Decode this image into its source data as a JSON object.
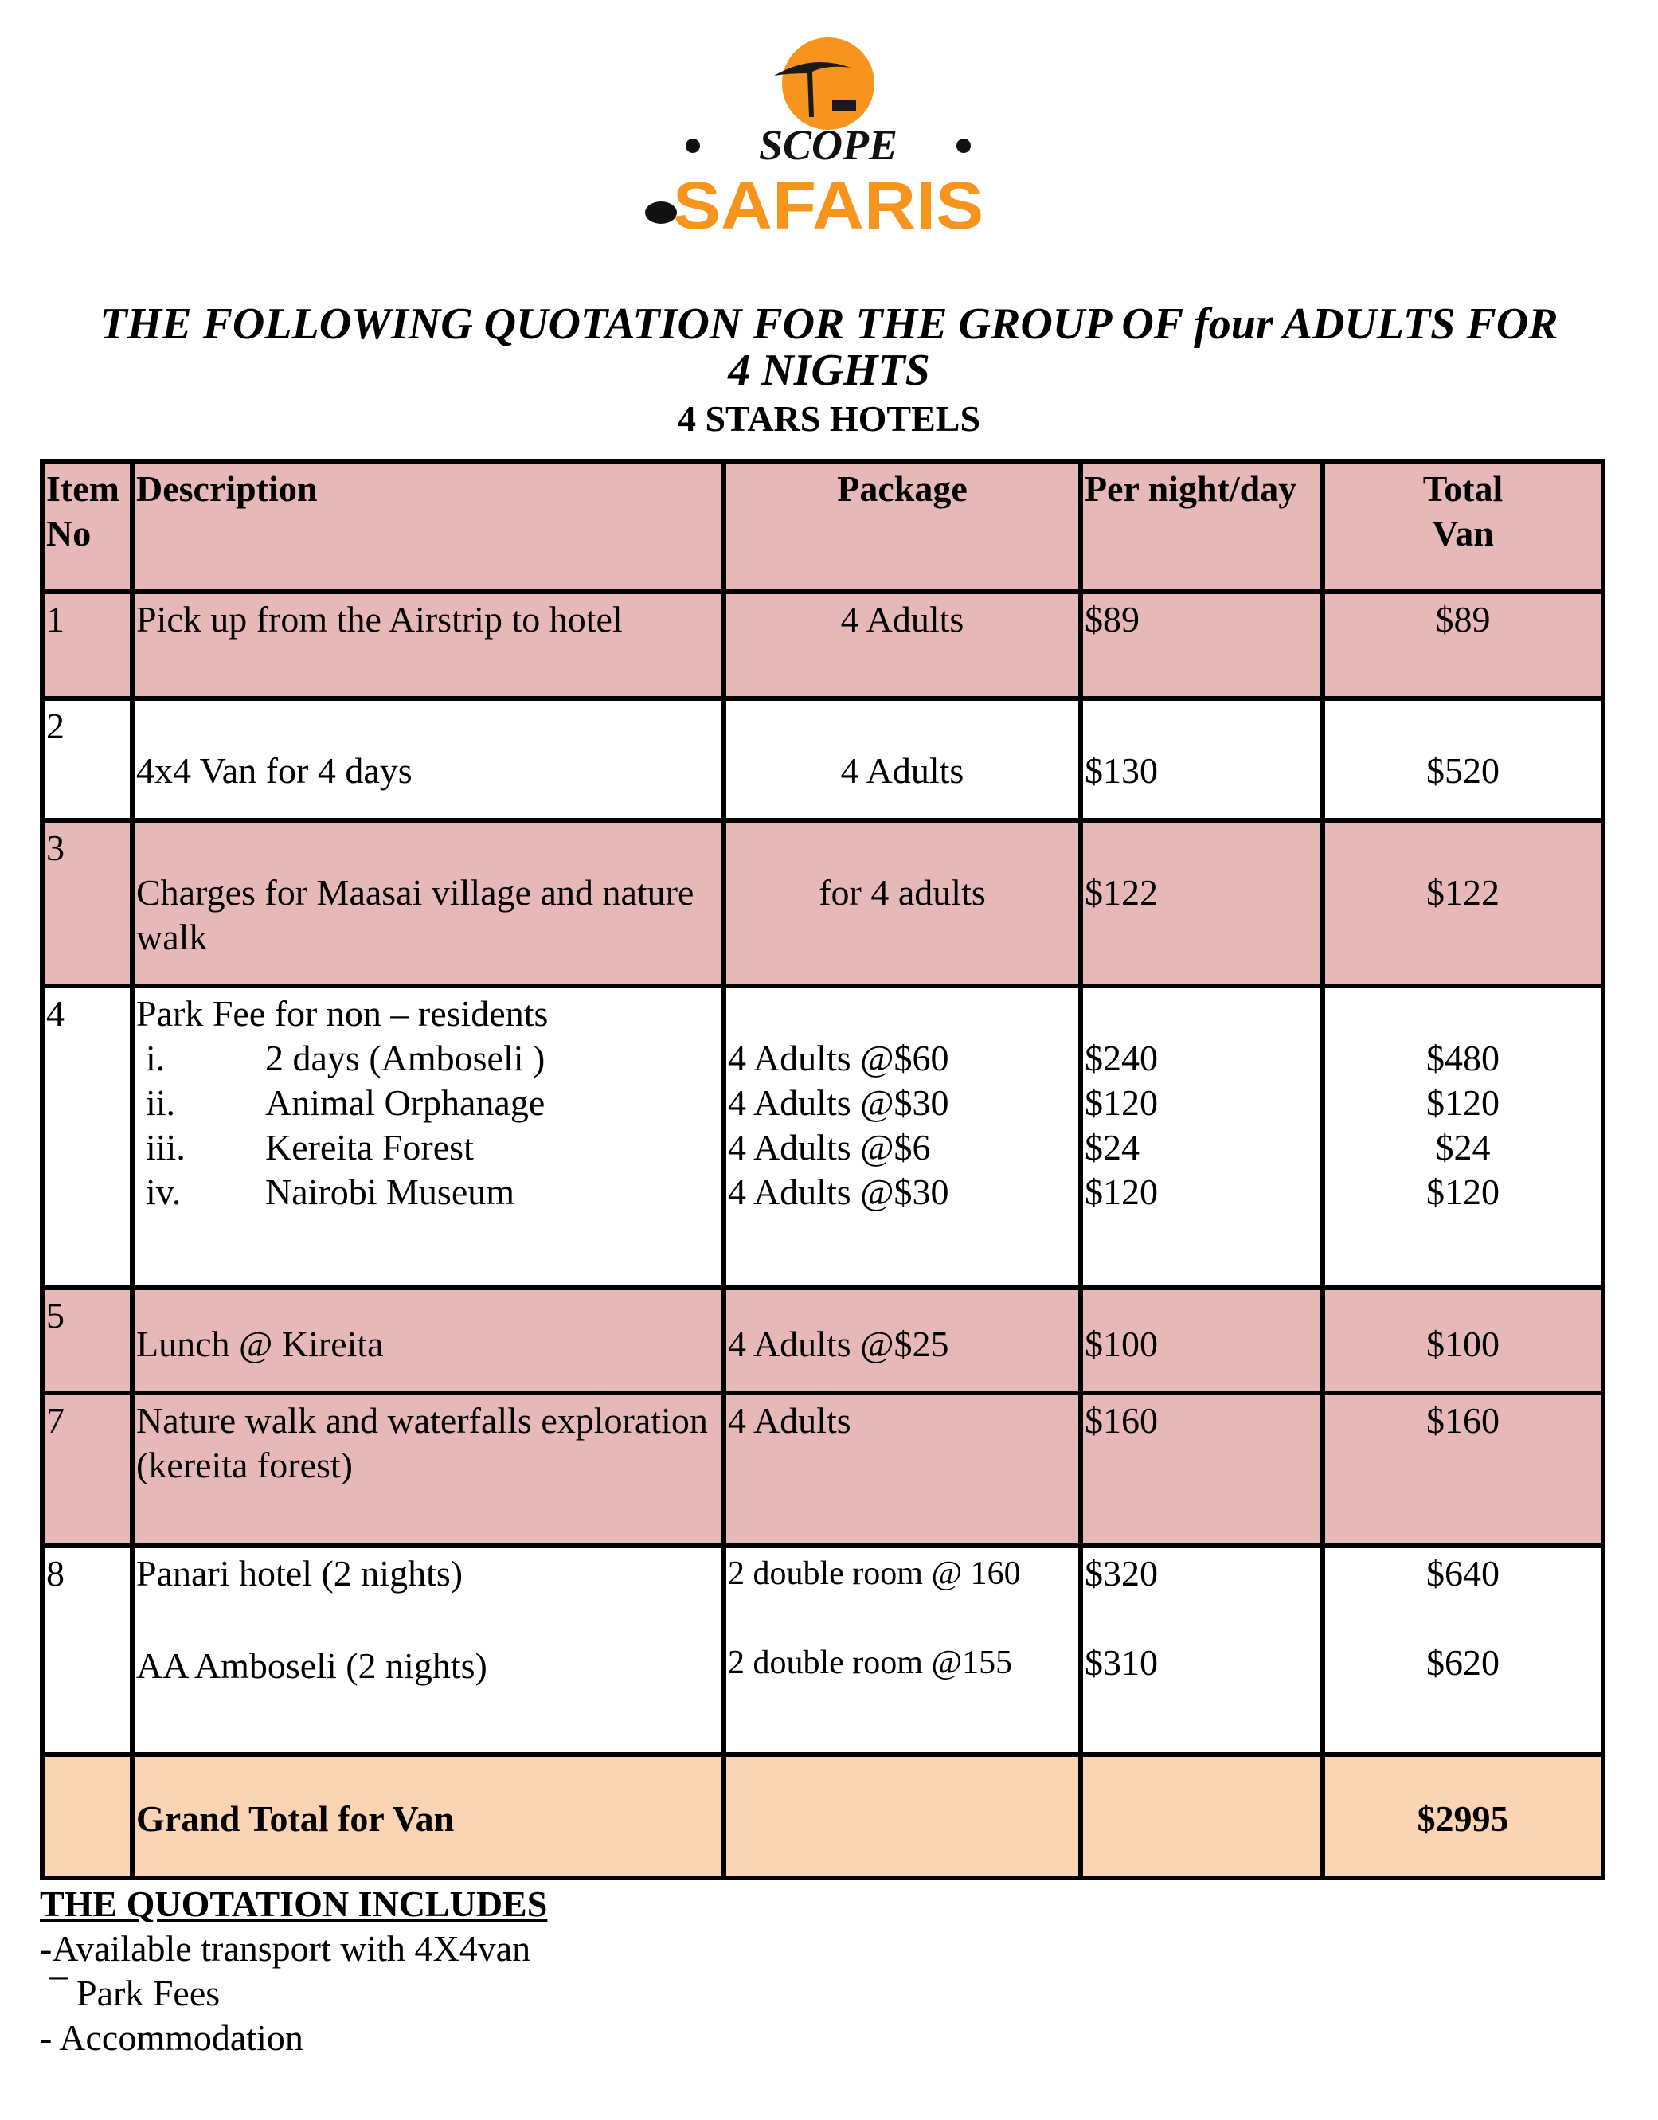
{
  "logo": {
    "line1": "SCOPE",
    "line2": "SAFARIS",
    "colors": {
      "orange": "#f7941d",
      "black": "#111111"
    }
  },
  "title": {
    "line1": "THE FOLLOWING QUOTATION FOR THE GROUP OF four ADULTS FOR",
    "line2": "4 NIGHTS",
    "subtitle": "4 STARS HOTELS"
  },
  "colors": {
    "row_pink": "#e6b8b7",
    "grand_total": "#fbd4b4"
  },
  "table": {
    "headers": {
      "item_no": "Item No",
      "description": "Description",
      "package": "Package",
      "per_night": "Per night/day",
      "total_line1": "Total",
      "total_line2": "Van"
    },
    "rows": [
      {
        "no": "1",
        "desc": "Pick up from the Airstrip to hotel",
        "package": "4 Adults",
        "per": "$89",
        "total": "$89"
      },
      {
        "no": "2",
        "desc": "4x4 Van for 4 days",
        "package": "4 Adults",
        "per": "$130",
        "total": "$520"
      },
      {
        "no": "3",
        "desc": "Charges for Maasai village and nature walk",
        "package": "for 4 adults",
        "per": "$122",
        "total": "$122"
      },
      {
        "no": "4",
        "desc": "Park Fee for non – residents",
        "sub": [
          {
            "num": "i.",
            "desc": "2 days (Amboseli )",
            "package": "4 Adults @$60",
            "per": "$240",
            "total": "$480"
          },
          {
            "num": "ii.",
            "desc": "Animal Orphanage",
            "package": "4 Adults @$30",
            "per": "$120",
            "total": "$120"
          },
          {
            "num": "iii.",
            "desc": "Kereita Forest",
            "package": "4 Adults @$6",
            "per": "$24",
            "total": "$24"
          },
          {
            "num": "iv.",
            "desc": "Nairobi Museum",
            "package": "4 Adults @$30",
            "per": "$120",
            "total": "$120"
          }
        ]
      },
      {
        "no": "5",
        "desc": "Lunch @ Kireita",
        "package": "4 Adults @$25",
        "per": "$100",
        "total": "$100"
      },
      {
        "no": "7",
        "desc": "Nature walk and waterfalls exploration (kereita forest)",
        "package": "4 Adults",
        "per": "$160",
        "total": "$160"
      },
      {
        "no": "8",
        "lines": [
          {
            "desc": "Panari hotel (2 nights)",
            "package": "2 double room @ 160",
            "per": "$320",
            "total": "$640"
          },
          {
            "desc": "AA Amboseli (2 nights)",
            "package": "2 double room @155",
            "per": "$310",
            "total": "$620"
          }
        ]
      }
    ],
    "grand_total": {
      "label": "Grand Total for Van",
      "value": "$2995"
    }
  },
  "includes": {
    "heading": "THE QUOTATION INCLUDES",
    "items": [
      "-Available transport with 4X4van",
      " ¯ Park Fees",
      "- Accommodation"
    ]
  }
}
